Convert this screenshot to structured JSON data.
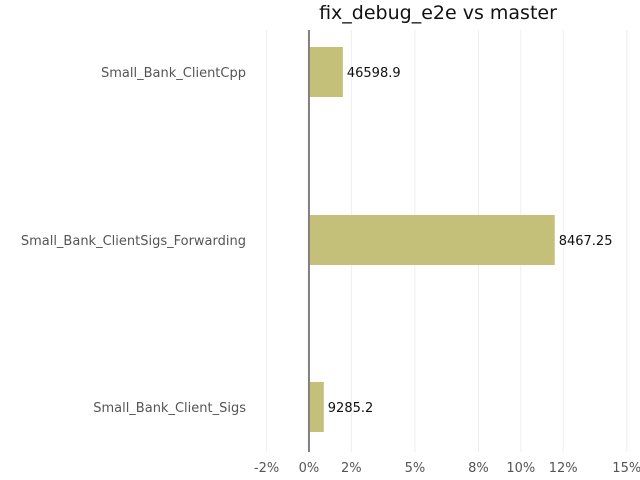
{
  "chart_data": {
    "type": "bar",
    "orientation": "horizontal",
    "title": "fix_debug_e2e vs master",
    "categories": [
      "Small_Bank_ClientCpp",
      "Small_Bank_ClientSigs_Forwarding",
      "Small_Bank_Client_Sigs"
    ],
    "values": [
      1.6,
      11.6,
      0.7
    ],
    "data_labels": [
      "46598.9",
      "8467.25",
      "9285.2"
    ],
    "value_unit": "%",
    "xlim": [
      -2.5,
      15.2
    ],
    "xticks": [
      -2,
      0,
      2,
      5,
      8,
      10,
      12,
      15
    ],
    "xtick_labels": [
      "-2%",
      "0%",
      "2%",
      "5%",
      "8%",
      "10%",
      "12%",
      "15%"
    ],
    "bar_color": "#c4bf79",
    "grid": true,
    "legend": "none"
  }
}
